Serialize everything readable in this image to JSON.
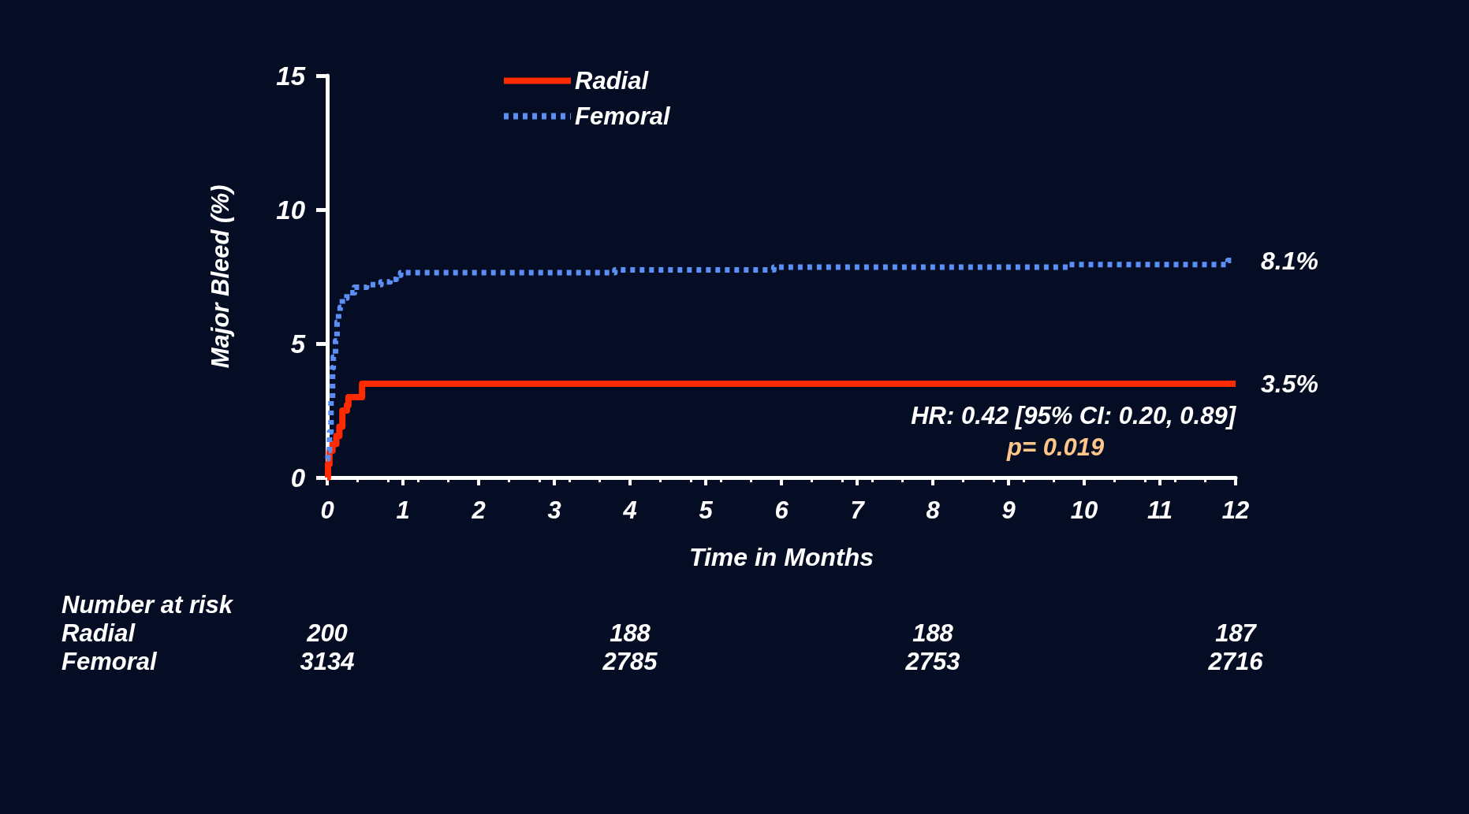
{
  "chart_data": {
    "type": "step",
    "xlabel": "Time in Months",
    "ylabel": "Major Bleed (%)",
    "xlim": [
      0,
      12
    ],
    "xticks": [
      0,
      1,
      2,
      3,
      4,
      5,
      6,
      7,
      8,
      9,
      10,
      11,
      12
    ],
    "ylim": [
      0,
      15
    ],
    "yticks": [
      0,
      5,
      10,
      15
    ],
    "grid": false,
    "legend": "top",
    "marker": "none",
    "series": [
      {
        "name": "Radial",
        "color": "#ff2a00",
        "line_style": "solid",
        "x": [
          0,
          0.01,
          0.03,
          0.07,
          0.12,
          0.16,
          0.2,
          0.26,
          0.28,
          0.46,
          12
        ],
        "values": [
          0,
          0.5,
          1.0,
          1.25,
          1.55,
          1.9,
          2.5,
          2.7,
          3.0,
          3.5,
          3.5
        ]
      },
      {
        "name": "Femoral",
        "color": "#5b8ff5",
        "line_style": "dotted",
        "x": [
          0,
          0.01,
          0.03,
          0.05,
          0.07,
          0.08,
          0.11,
          0.13,
          0.15,
          0.17,
          0.2,
          0.26,
          0.36,
          0.52,
          0.71,
          0.83,
          0.91,
          0.97,
          3.8,
          5.9,
          9.8,
          11.9,
          12
        ],
        "values": [
          0.7,
          1.0,
          1.7,
          2.9,
          4.1,
          4.5,
          5.1,
          5.8,
          6.1,
          6.35,
          6.7,
          6.9,
          7.1,
          7.2,
          7.3,
          7.4,
          7.55,
          7.65,
          7.75,
          7.85,
          7.95,
          8.1,
          8.1
        ]
      }
    ],
    "annotations": [
      "HR: 0.42 [95% CI: 0.20, 0.89]",
      "p= 0.019",
      {
        "text": "8.1%",
        "x": 12,
        "y": 8.1
      },
      {
        "text": "3.5%",
        "x": 12,
        "y": 3.5
      },
      "Number at risk",
      "Radial",
      "200",
      "188",
      "188",
      "187",
      "Femoral",
      "3134",
      "2785",
      "2753",
      "2716"
    ]
  }
}
